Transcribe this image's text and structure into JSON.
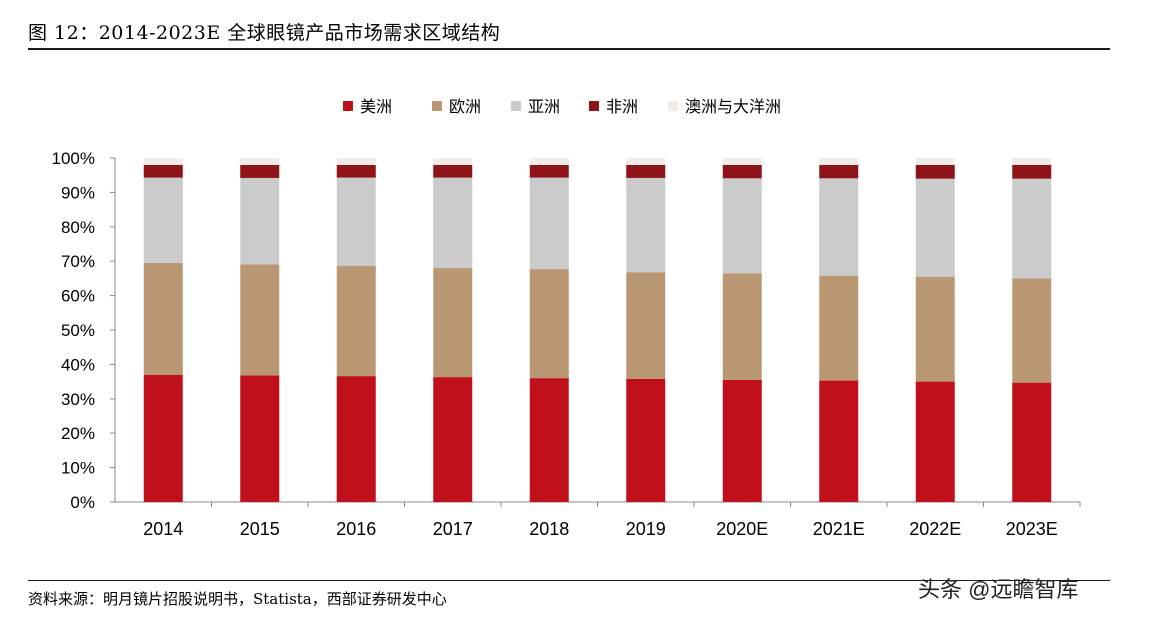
{
  "header": {
    "title": "图 12：2014-2023E 全球眼镜产品市场需求区域结构"
  },
  "footer": {
    "source": "资料来源：明月镜片招股说明书，Statista，西部证券研发中心",
    "watermark": "头条 @远瞻智库"
  },
  "chart_data": {
    "type": "bar",
    "stacked": true,
    "title": "",
    "xlabel": "",
    "ylabel": "",
    "ylim": [
      0,
      100
    ],
    "y_ticks": [
      "0%",
      "10%",
      "20%",
      "30%",
      "40%",
      "50%",
      "60%",
      "70%",
      "80%",
      "90%",
      "100%"
    ],
    "categories": [
      "2014",
      "2015",
      "2016",
      "2017",
      "2018",
      "2019",
      "2020E",
      "2021E",
      "2022E",
      "2023E"
    ],
    "legend_position": "top-center",
    "grid": false,
    "series": [
      {
        "name": "美洲",
        "color": "#c0101c",
        "values": [
          37.0,
          36.8,
          36.6,
          36.3,
          36.0,
          35.8,
          35.5,
          35.3,
          35.0,
          34.7
        ]
      },
      {
        "name": "欧洲",
        "color": "#b89772",
        "values": [
          32.5,
          32.3,
          32.1,
          31.7,
          31.7,
          31.0,
          31.0,
          30.5,
          30.5,
          30.3
        ]
      },
      {
        "name": "亚洲",
        "color": "#cbcbcb",
        "values": [
          24.8,
          25.1,
          25.6,
          26.3,
          26.6,
          27.4,
          27.6,
          28.3,
          28.5,
          29.0
        ]
      },
      {
        "name": "非洲",
        "color": "#8e1419",
        "values": [
          3.7,
          3.8,
          3.7,
          3.7,
          3.7,
          3.8,
          3.9,
          3.9,
          4.0,
          4.0
        ]
      },
      {
        "name": "澳洲与大洋洲",
        "color": "#f2ece8",
        "values": [
          2.0,
          2.0,
          2.0,
          2.0,
          2.0,
          2.0,
          2.0,
          2.0,
          2.0,
          2.0
        ]
      }
    ]
  }
}
